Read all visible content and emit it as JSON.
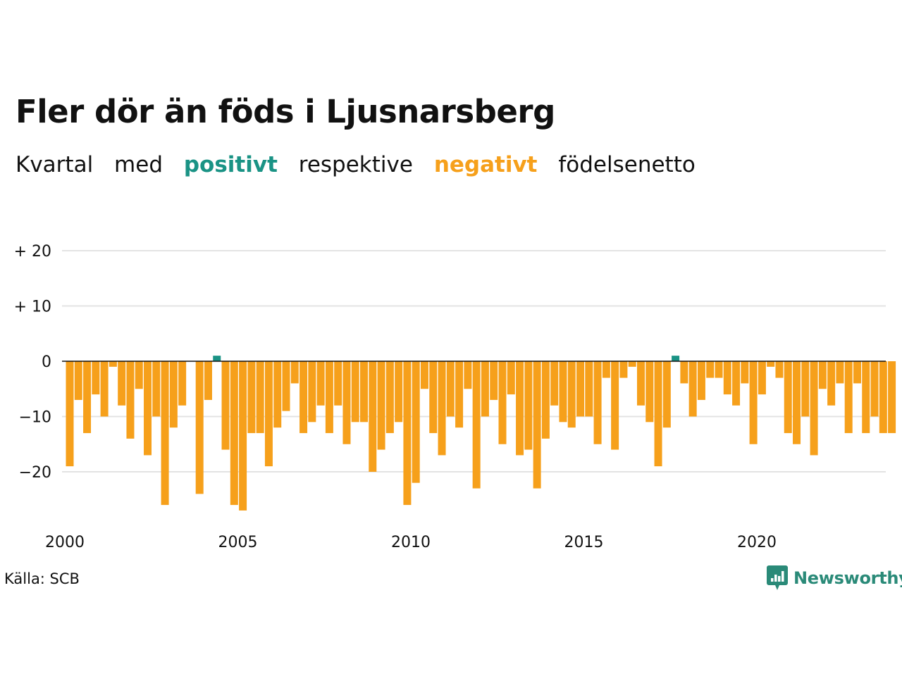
{
  "title": "Fler dör än föds i Ljusnarsberg",
  "subtitle": {
    "w1": "Kvartal",
    "w2": "med",
    "positive": "positivt",
    "w3": "respektive",
    "negative": "negativt",
    "w4": "födelsenetto"
  },
  "source": "Källa: SCB",
  "logo_text": "Newsworthy",
  "logo_icon": "bar-chart-speech-icon",
  "colors": {
    "positive": "#1a9385",
    "negative": "#f6a01b",
    "grid": "#e3e3e3",
    "zero": "#111111",
    "logo": "#2a8a78"
  },
  "chart_data": {
    "type": "bar",
    "title": "Fler dör än föds i Ljusnarsberg",
    "subtitle": "Kvartal med positivt respektive negativt födelsenetto",
    "xlabel": "",
    "ylabel": "",
    "x_start": "2000 Q1",
    "x_end": "2023 Q4",
    "x_ticks": [
      {
        "year": 2000,
        "label": "2000"
      },
      {
        "year": 2005,
        "label": "2005"
      },
      {
        "year": 2010,
        "label": "2010"
      },
      {
        "year": 2015,
        "label": "2015"
      },
      {
        "year": 2020,
        "label": "2020"
      }
    ],
    "y_ticks": [
      {
        "value": 20,
        "label": "+ 20"
      },
      {
        "value": 10,
        "label": "+ 10"
      },
      {
        "value": 0,
        "label": "0"
      },
      {
        "value": -10,
        "label": "−10"
      },
      {
        "value": -20,
        "label": "−20"
      }
    ],
    "ylim": [
      -28,
      22
    ],
    "grid": true,
    "values": [
      -19,
      -7,
      -13,
      -6,
      -10,
      -1,
      -8,
      -14,
      -5,
      -17,
      -10,
      -26,
      -12,
      -8,
      0,
      -24,
      -7,
      1,
      -16,
      -26,
      -27,
      -13,
      -13,
      -19,
      -12,
      -9,
      -4,
      -13,
      -11,
      -8,
      -13,
      -8,
      -15,
      -11,
      -11,
      -20,
      -16,
      -13,
      -11,
      -26,
      -22,
      -5,
      -13,
      -17,
      -10,
      -12,
      -5,
      -23,
      -10,
      -7,
      -15,
      -6,
      -17,
      -16,
      -23,
      -14,
      -8,
      -11,
      -12,
      -10,
      -10,
      -15,
      -3,
      -16,
      -3,
      -1,
      -8,
      -11,
      -19,
      -12,
      1,
      -4,
      -10,
      -7,
      -3,
      -3,
      -6,
      -8,
      -4,
      -15,
      -6,
      -1,
      -3,
      -13,
      -15,
      -10,
      -17,
      -5,
      -8,
      -4,
      -13,
      -4,
      -13,
      -10,
      -13,
      -13
    ]
  }
}
